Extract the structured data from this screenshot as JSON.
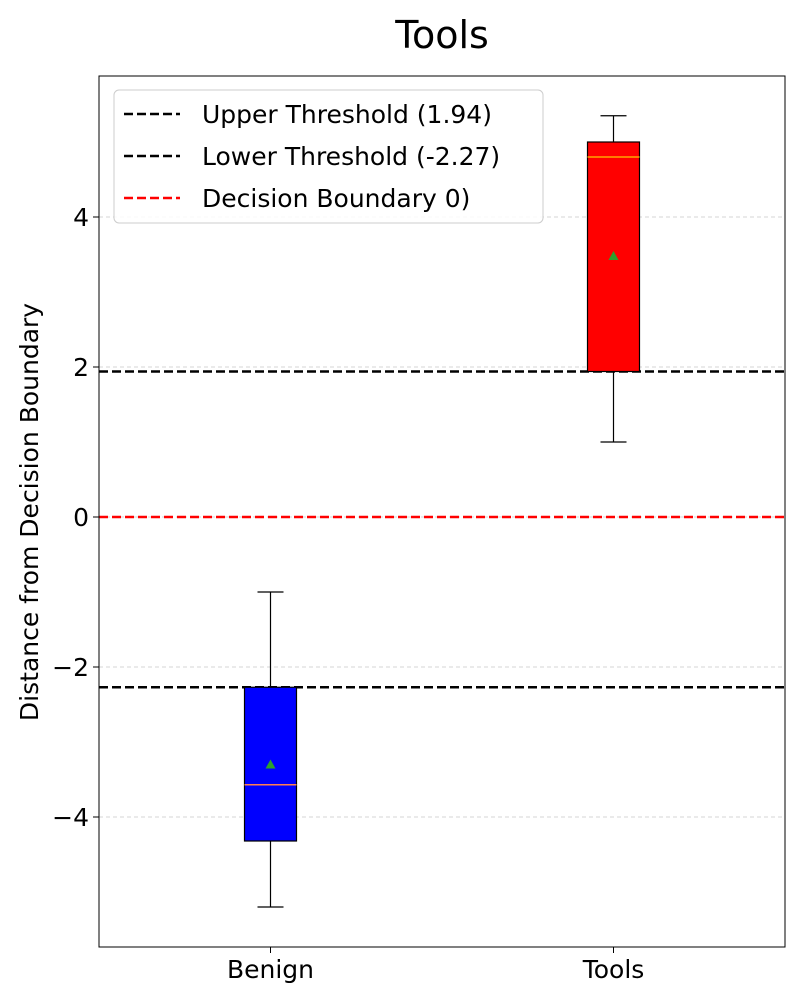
{
  "chart_data": {
    "type": "box",
    "title": "Tools",
    "xlabel": "",
    "ylabel": "Distance from Decision Boundary",
    "categories": [
      "Benign",
      "Tools"
    ],
    "ylim": [
      -5.8,
      5.8
    ],
    "yticks": [
      -4,
      -2,
      0,
      2,
      4
    ],
    "ytick_labels": [
      "−4",
      "−2",
      "0",
      "2",
      "4"
    ],
    "grid": "y-dashed",
    "boxes": [
      {
        "name": "Benign",
        "color": "#0000ff",
        "whisker_low": -5.2,
        "q1": -4.32,
        "median": -3.57,
        "q3": -2.27,
        "whisker_high": -1.0,
        "mean": -3.3,
        "median_color": "#ff7f50"
      },
      {
        "name": "Tools",
        "color": "#ff0000",
        "whisker_low": 1.0,
        "q1": 1.94,
        "median": 4.8,
        "q3": 5.0,
        "whisker_high": 5.35,
        "mean": 3.48,
        "median_color": "#ffa500"
      }
    ],
    "mean_marker_color": "#2ca02c",
    "reference_lines": [
      {
        "label": "Upper Threshold (1.94)",
        "value": 1.94,
        "color": "#000000"
      },
      {
        "label": "Lower Threshold (-2.27)",
        "value": -2.27,
        "color": "#000000"
      },
      {
        "label": "Decision Boundary 0)",
        "value": 0,
        "color": "#ff0000"
      }
    ],
    "legend_position": "top-left"
  }
}
